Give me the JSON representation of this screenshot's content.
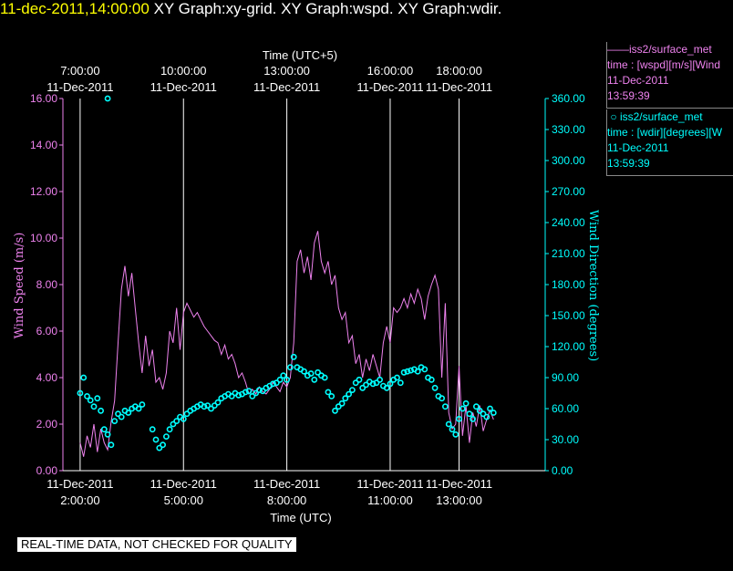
{
  "header": {
    "timestamp": "11-dec-2011,14:00:00",
    "titles": "XY Graph:xy-grid.  XY Graph:wspd.  XY Graph:wdir."
  },
  "legend": [
    {
      "marker": "——",
      "name": "iss2/surface_met",
      "var": "time : [wspd][m/s][Wind",
      "date": "11-Dec-2011",
      "time": "13:59:39",
      "color": "#ee82ee"
    },
    {
      "marker": "○",
      "name": "iss2/surface_met",
      "var": "time : [wdir][degrees][W",
      "date": "11-Dec-2011",
      "time": "13:59:39",
      "color": "#00ffff"
    }
  ],
  "disclaimer": "REAL-TIME DATA, NOT CHECKED FOR QUALITY",
  "chart_data": {
    "type": "line",
    "xlabel_top": "Time (UTC+5)",
    "xlabel_bottom": "Time (UTC)",
    "ylabel_left": "Wind Speed (m/s)",
    "ylabel_right": "Wind Direction (degrees)",
    "xlim_utc_hours": [
      1.5,
      15.5
    ],
    "ylim_left": [
      0,
      16
    ],
    "ylim_right": [
      0,
      360
    ],
    "grid": "vertical lines at bottom tick times",
    "bottom_ticks": [
      {
        "t": 2,
        "date": "11-Dec-2011",
        "time": "2:00:00"
      },
      {
        "t": 5,
        "date": "11-Dec-2011",
        "time": "5:00:00"
      },
      {
        "t": 8,
        "date": "11-Dec-2011",
        "time": "8:00:00"
      },
      {
        "t": 11,
        "date": "11-Dec-2011",
        "time": "11:00:00"
      },
      {
        "t": 13,
        "date": "11-Dec-2011",
        "time": "13:00:00"
      }
    ],
    "top_ticks": [
      {
        "t": 2,
        "time": "7:00:00",
        "date": "11-Dec-2011"
      },
      {
        "t": 5,
        "time": "10:00:00",
        "date": "11-Dec-2011"
      },
      {
        "t": 8,
        "time": "13:00:00",
        "date": "11-Dec-2011"
      },
      {
        "t": 11,
        "time": "16:00:00",
        "date": "11-Dec-2011"
      },
      {
        "t": 13,
        "time": "18:00:00",
        "date": "11-Dec-2011"
      }
    ],
    "left_ticks": [
      "0.00",
      "2.00",
      "4.00",
      "6.00",
      "8.00",
      "10.00",
      "12.00",
      "14.00",
      "16.00"
    ],
    "right_ticks": [
      "0.00",
      "30.00",
      "60.00",
      "90.00",
      "120.00",
      "150.00",
      "180.00",
      "210.00",
      "240.00",
      "270.00",
      "300.00",
      "330.00",
      "360.00"
    ],
    "series": [
      {
        "name": "iss2/surface_met time : [wspd][m/s]",
        "axis": "left",
        "style": "line",
        "color": "#ee82ee",
        "x": [
          2.0,
          2.1,
          2.2,
          2.3,
          2.4,
          2.5,
          2.6,
          2.7,
          2.8,
          2.9,
          3.0,
          3.1,
          3.2,
          3.3,
          3.4,
          3.5,
          3.6,
          3.7,
          3.8,
          3.9,
          4.0,
          4.1,
          4.2,
          4.3,
          4.4,
          4.5,
          4.6,
          4.7,
          4.8,
          4.9,
          5.0,
          5.1,
          5.2,
          5.3,
          5.4,
          5.5,
          5.6,
          5.7,
          5.8,
          5.9,
          6.0,
          6.1,
          6.2,
          6.3,
          6.4,
          6.5,
          6.6,
          6.7,
          6.8,
          6.9,
          7.0,
          7.1,
          7.2,
          7.3,
          7.4,
          7.5,
          7.6,
          7.7,
          7.8,
          7.9,
          8.0,
          8.1,
          8.2,
          8.3,
          8.4,
          8.5,
          8.6,
          8.7,
          8.8,
          8.9,
          9.0,
          9.1,
          9.2,
          9.3,
          9.4,
          9.5,
          9.6,
          9.7,
          9.8,
          9.9,
          10.0,
          10.1,
          10.2,
          10.3,
          10.4,
          10.5,
          10.6,
          10.7,
          10.8,
          10.9,
          11.0,
          11.1,
          11.2,
          11.3,
          11.4,
          11.5,
          11.6,
          11.7,
          11.8,
          11.9,
          12.0,
          12.1,
          12.2,
          12.3,
          12.4,
          12.5,
          12.6,
          12.7,
          12.8,
          12.9,
          13.0,
          13.1,
          13.2,
          13.3,
          13.4,
          13.5,
          13.6,
          13.7,
          13.8,
          13.9,
          14.0
        ],
        "y": [
          1.2,
          0.6,
          1.5,
          1.0,
          2.0,
          0.8,
          1.8,
          1.2,
          0.9,
          2.1,
          3.0,
          5.5,
          7.8,
          8.8,
          7.5,
          8.5,
          7.0,
          5.5,
          4.2,
          5.8,
          4.5,
          5.2,
          3.8,
          4.0,
          3.5,
          4.2,
          6.0,
          5.5,
          7.0,
          5.2,
          6.8,
          7.2,
          6.9,
          6.6,
          6.8,
          6.5,
          6.2,
          6.0,
          5.8,
          5.6,
          5.5,
          5.0,
          5.4,
          4.8,
          5.0,
          4.6,
          4.0,
          4.2,
          3.8,
          3.3,
          3.5,
          3.3,
          3.6,
          3.4,
          3.3,
          3.5,
          3.8,
          3.6,
          3.4,
          3.8,
          3.6,
          4.0,
          5.5,
          9.0,
          9.5,
          8.5,
          9.2,
          8.2,
          9.8,
          10.3,
          9.0,
          8.5,
          9.0,
          8.0,
          8.4,
          7.0,
          6.5,
          6.8,
          5.5,
          5.8,
          4.6,
          5.0,
          4.0,
          4.8,
          4.3,
          5.0,
          4.5,
          4.0,
          5.5,
          6.2,
          5.5,
          7.0,
          6.8,
          7.0,
          7.4,
          7.0,
          7.6,
          7.2,
          7.8,
          7.4,
          6.5,
          7.5,
          8.0,
          8.4,
          7.8,
          4.0,
          7.2,
          2.5,
          1.8,
          2.0,
          4.5,
          1.5,
          2.8,
          1.2,
          2.5,
          1.9,
          2.8,
          1.7,
          2.2,
          2.6,
          2.2
        ]
      },
      {
        "name": "iss2/surface_met time : [wdir][degrees]",
        "axis": "right",
        "style": "circles",
        "color": "#00ffff",
        "x": [
          2.0,
          2.1,
          2.2,
          2.3,
          2.4,
          2.5,
          2.6,
          2.7,
          2.8,
          2.9,
          3.0,
          3.1,
          3.2,
          3.3,
          3.4,
          3.5,
          3.6,
          3.7,
          3.8,
          4.1,
          4.2,
          4.3,
          4.4,
          4.5,
          4.6,
          4.7,
          4.8,
          4.9,
          5.0,
          5.1,
          5.2,
          5.3,
          5.4,
          5.5,
          5.6,
          5.7,
          5.8,
          5.9,
          6.0,
          6.1,
          6.2,
          6.3,
          6.4,
          6.5,
          6.6,
          6.7,
          6.8,
          6.9,
          7.0,
          7.1,
          7.2,
          7.3,
          7.4,
          7.5,
          7.6,
          7.7,
          7.8,
          7.9,
          8.0,
          8.1,
          8.2,
          8.3,
          8.4,
          8.5,
          8.6,
          8.7,
          8.8,
          8.9,
          9.0,
          9.1,
          9.2,
          9.3,
          9.4,
          9.5,
          9.6,
          9.7,
          9.8,
          9.9,
          10.0,
          10.1,
          10.2,
          10.3,
          10.4,
          10.5,
          10.6,
          10.7,
          10.8,
          10.9,
          11.0,
          11.1,
          11.2,
          11.3,
          11.4,
          11.5,
          11.6,
          11.7,
          11.8,
          11.9,
          12.0,
          12.1,
          12.2,
          12.3,
          12.4,
          12.5,
          12.6,
          12.7,
          12.8,
          12.9,
          13.0,
          13.1,
          13.2,
          13.3,
          13.4,
          13.5,
          13.6,
          13.7,
          13.8,
          13.9,
          14.0
        ],
        "y": [
          75,
          90,
          72,
          68,
          62,
          70,
          58,
          40,
          35,
          25,
          48,
          55,
          52,
          58,
          56,
          60,
          62,
          60,
          64,
          40,
          30,
          22,
          25,
          33,
          40,
          45,
          48,
          52,
          50,
          55,
          58,
          60,
          62,
          64,
          62,
          63,
          60,
          63,
          66,
          70,
          72,
          74,
          72,
          75,
          73,
          74,
          76,
          77,
          72,
          75,
          78,
          77,
          80,
          82,
          84,
          85,
          88,
          92,
          88,
          100,
          110,
          100,
          98,
          96,
          92,
          94,
          88,
          95,
          92,
          90,
          76,
          72,
          58,
          62,
          65,
          70,
          74,
          78,
          85,
          88,
          80,
          83,
          86,
          84,
          85,
          88,
          82,
          80,
          84,
          88,
          90,
          85,
          95,
          96,
          97,
          98,
          96,
          100,
          98,
          90,
          88,
          80,
          72,
          70,
          62,
          45,
          40,
          35,
          50,
          60,
          65,
          55,
          50,
          62,
          58,
          55,
          52,
          60,
          56
        ]
      }
    ],
    "outliers": [
      {
        "x": 2.8,
        "y_right": 360
      }
    ]
  }
}
